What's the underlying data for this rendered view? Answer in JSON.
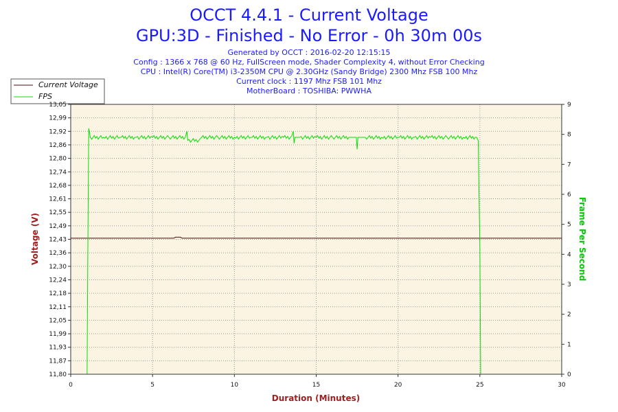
{
  "header": {
    "title_line1": "OCCT 4.4.1 - Current Voltage",
    "title_line2": "GPU:3D - Finished - No Error - 0h 30m 00s",
    "info_lines": [
      "Generated by OCCT : 2016-02-20 12:15:15",
      "Config : 1366 x 768 @ 60 Hz, FullScreen mode, Shader Complexity 4, without Error Checking",
      "CPU : Intel(R) Core(TM) i3-2350M CPU @ 2.30GHz (Sandy Bridge) 2300 Mhz FSB 100 Mhz",
      "Current clock : 1197 Mhz FSB 101 Mhz",
      "MotherBoard : TOSHIBA: PWWHA"
    ]
  },
  "colors": {
    "voltage": "#4a0a0a",
    "fps": "#00e000",
    "plot_bg": "#fbf4e3",
    "grid": "#9a9a9a"
  },
  "chart_data": {
    "type": "line",
    "xlabel": "Duration (Minutes)",
    "ylabel": "Voltage (V)",
    "y2label": "Frame Per Second",
    "xlim": [
      0,
      30
    ],
    "ylim": [
      11.8,
      13.05
    ],
    "y2lim": [
      0,
      9
    ],
    "x_ticks": [
      "0",
      "5",
      "10",
      "15",
      "20",
      "25",
      "30"
    ],
    "y_ticks": [
      "11,80",
      "11,87",
      "11,93",
      "11,99",
      "12,05",
      "12,11",
      "12,18",
      "12,24",
      "12,30",
      "12,36",
      "12,43",
      "12,49",
      "12,55",
      "12,61",
      "12,68",
      "12,74",
      "12,80",
      "12,86",
      "12,92",
      "12,99",
      "13,05"
    ],
    "y2_ticks": [
      "0",
      "1",
      "2",
      "3",
      "4",
      "5",
      "6",
      "7",
      "8",
      "9"
    ],
    "grid": true,
    "legend_position": "top-left",
    "series": [
      {
        "name": "Current Voltage",
        "axis": "left",
        "x": [
          0,
          6.3,
          6.4,
          6.7,
          6.8,
          30
        ],
        "values": [
          12.43,
          12.43,
          12.435,
          12.435,
          12.43,
          12.43
        ]
      },
      {
        "name": "FPS",
        "axis": "right",
        "x": [
          1.0,
          1.05,
          1.1,
          1.2,
          2,
          3,
          4,
          5,
          6,
          7,
          7.1,
          7.15,
          8,
          9,
          10,
          11,
          12,
          13,
          13.6,
          13.65,
          13.7,
          14,
          15,
          16,
          17,
          17.45,
          17.5,
          17.55,
          18,
          19,
          20,
          21,
          22,
          23,
          24,
          24.8,
          24.9,
          25.0,
          25.05
        ],
        "values": [
          0,
          4.3,
          8.2,
          7.9,
          7.9,
          7.9,
          7.9,
          7.9,
          7.9,
          7.9,
          8.1,
          7.8,
          7.9,
          7.9,
          7.9,
          7.9,
          7.9,
          7.9,
          8.1,
          7.7,
          7.9,
          7.9,
          7.9,
          7.9,
          7.9,
          7.9,
          7.5,
          7.9,
          7.9,
          7.9,
          7.9,
          7.9,
          7.9,
          7.9,
          7.9,
          7.9,
          7.8,
          4.3,
          0
        ]
      }
    ]
  }
}
